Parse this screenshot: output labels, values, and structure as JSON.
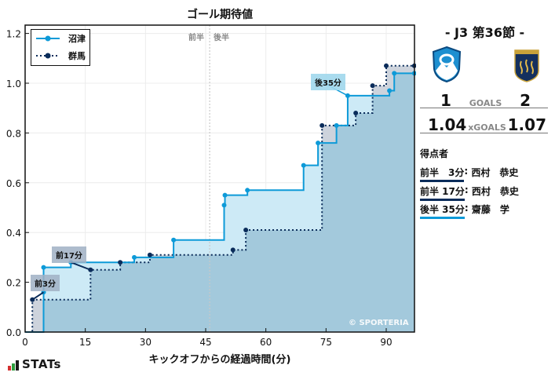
{
  "chart_data": {
    "type": "line",
    "subtype": "step-area",
    "title": "ゴール期待値",
    "xlabel": "キックオフからの経過時間(分)",
    "ylabel": "",
    "xlim": [
      0,
      97
    ],
    "ylim": [
      0,
      1.24
    ],
    "xticks": [
      0,
      15,
      30,
      45,
      60,
      75,
      90
    ],
    "yticks": [
      0.0,
      0.2,
      0.4,
      0.6,
      0.8,
      1.0,
      1.2
    ],
    "grid": true,
    "legend_position": "upper left",
    "half_time_marker": 46,
    "half_labels": [
      "前半",
      "後半"
    ],
    "series": [
      {
        "name": "沼津",
        "color": "#0d9ad8",
        "style": "solid",
        "points": [
          {
            "x": 4.6,
            "y": 0.16
          },
          {
            "x": 4.6,
            "y": 0.26
          },
          {
            "x": 11.4,
            "y": 0.28
          },
          {
            "x": 27.2,
            "y": 0.3
          },
          {
            "x": 37.0,
            "y": 0.37
          },
          {
            "x": 49.6,
            "y": 0.51
          },
          {
            "x": 49.8,
            "y": 0.55
          },
          {
            "x": 55.4,
            "y": 0.57
          },
          {
            "x": 69.4,
            "y": 0.67
          },
          {
            "x": 73.0,
            "y": 0.76
          },
          {
            "x": 77.6,
            "y": 0.83
          },
          {
            "x": 80.4,
            "y": 0.95
          },
          {
            "x": 90.8,
            "y": 0.97
          },
          {
            "x": 92.0,
            "y": 1.04
          },
          {
            "x": 97.0,
            "y": 1.04
          }
        ],
        "final": 1.04
      },
      {
        "name": "群馬",
        "color": "#0a2c5a",
        "style": "dotted",
        "points": [
          {
            "x": 1.8,
            "y": 0.13
          },
          {
            "x": 16.3,
            "y": 0.25
          },
          {
            "x": 23.7,
            "y": 0.28
          },
          {
            "x": 31.1,
            "y": 0.31
          },
          {
            "x": 51.8,
            "y": 0.33
          },
          {
            "x": 55.0,
            "y": 0.41
          },
          {
            "x": 74.0,
            "y": 0.83
          },
          {
            "x": 82.4,
            "y": 0.88
          },
          {
            "x": 86.6,
            "y": 0.99
          },
          {
            "x": 90.0,
            "y": 1.07
          },
          {
            "x": 97.0,
            "y": 1.07
          }
        ],
        "final": 1.07
      }
    ],
    "annotations": [
      {
        "text": "前3分",
        "x": 4.6,
        "y": 0.16,
        "team": "群馬"
      },
      {
        "text": "前17分",
        "x": 16.3,
        "y": 0.25,
        "team": "群馬"
      },
      {
        "text": "後35分",
        "x": 80.4,
        "y": 0.95,
        "team": "沼津"
      }
    ]
  },
  "chart": {
    "title": "ゴール期待値",
    "xlabel": "キックオフからの経過時間(分)",
    "first_half_label": "前半",
    "second_half_label": "後半",
    "legend": [
      {
        "label": "沼津"
      },
      {
        "label": "群馬"
      }
    ],
    "annotations": [
      "前3分",
      "前17分",
      "後35分"
    ],
    "copyright": "© SPORTERIA",
    "xticks": [
      "0",
      "15",
      "30",
      "45",
      "60",
      "75",
      "90"
    ],
    "yticks": [
      "0.0",
      "0.2",
      "0.4",
      "0.6",
      "0.8",
      "1.0",
      "1.2"
    ]
  },
  "colors": {
    "home": "#0d9ad8",
    "away": "#0a2c5a",
    "home_fill": "#cdeaf6",
    "away_fill": "#cdd3dc",
    "overlap_fill": "#a3c9dc"
  },
  "sidebar": {
    "match_title": "- J3 第36節 -",
    "home_team": "沼津",
    "away_team": "群馬",
    "home_goals": "1",
    "away_goals": "2",
    "goals_label": "GOALS",
    "home_xg": "1.04",
    "away_xg": "1.07",
    "xg_label": "xGOALS",
    "scorers_title": "得点者",
    "scorers": [
      {
        "time": "前半　3分",
        "name": "西村　恭史",
        "team_color": "#0a2c5a"
      },
      {
        "time": "前半 17分",
        "name": "西村　恭史",
        "team_color": "#0a2c5a"
      },
      {
        "time": "後半 35分",
        "name": "齋藤　学",
        "team_color": "#0d9ad8"
      }
    ]
  },
  "branding": {
    "logo_text": "STATs"
  }
}
